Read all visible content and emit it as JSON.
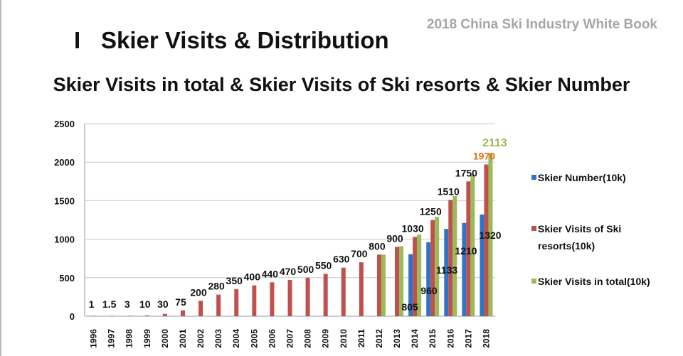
{
  "header": {
    "book_title": "2018 China Ski Industry White Book",
    "section_number": "I",
    "section_title": "Skier Visits & Distribution"
  },
  "chart_data": {
    "type": "bar",
    "title": "Skier Visits in total & Skier Visits of Ski resorts & Skier Number",
    "categories": [
      "1996",
      "1997",
      "1998",
      "1999",
      "2000",
      "2001",
      "2002",
      "2003",
      "2004",
      "2005",
      "2006",
      "2007",
      "2008",
      "2009",
      "2010",
      "2011",
      "2012",
      "2013",
      "2014",
      "2015",
      "2016",
      "2017",
      "2018"
    ],
    "ylim": [
      0,
      2500
    ],
    "yticks": [
      0,
      500,
      1000,
      1500,
      2000,
      2500
    ],
    "grid": true,
    "legend_position": "right",
    "series": [
      {
        "name": "Skier Number(10k)",
        "color": "#2e75c7",
        "values": [
          null,
          null,
          null,
          null,
          null,
          null,
          null,
          null,
          null,
          null,
          null,
          null,
          null,
          null,
          null,
          null,
          null,
          null,
          805,
          960,
          1133,
          1210,
          1320
        ],
        "labels": [
          null,
          null,
          null,
          null,
          null,
          null,
          null,
          null,
          null,
          null,
          null,
          null,
          null,
          null,
          null,
          null,
          null,
          null,
          "805",
          "960",
          "1133",
          "1210",
          "1320"
        ]
      },
      {
        "name": "Skier Visits of Ski resorts(10k)",
        "color": "#c0504d",
        "values": [
          1,
          1.5,
          3,
          10,
          30,
          75,
          200,
          280,
          350,
          400,
          440,
          470,
          500,
          550,
          630,
          700,
          800,
          900,
          1030,
          1250,
          1510,
          1750,
          1970
        ],
        "labels": [
          "1",
          "1.5",
          "3",
          "10",
          "30",
          "75",
          "200",
          "280",
          "350",
          "400",
          "440",
          "470",
          "500",
          "550",
          "630",
          "700",
          "800",
          "900",
          "1030",
          "1250",
          "1510",
          "1750",
          "1970"
        ]
      },
      {
        "name": "Skier Visits in total(10k)",
        "color": "#9bbb59",
        "values": [
          null,
          null,
          null,
          null,
          null,
          null,
          null,
          null,
          null,
          null,
          null,
          null,
          null,
          null,
          null,
          null,
          800,
          910,
          1060,
          1290,
          1560,
          1840,
          2113
        ],
        "labels": [
          null,
          null,
          null,
          null,
          null,
          null,
          null,
          null,
          null,
          null,
          null,
          null,
          null,
          null,
          null,
          null,
          null,
          null,
          null,
          null,
          null,
          null,
          "2113"
        ]
      }
    ],
    "legend": [
      {
        "text": "Skier Number(10k)",
        "color": "#2e75c7"
      },
      {
        "text": "Skier Visits of Ski resorts(10k)",
        "color": "#c0504d"
      },
      {
        "text": "Skier Visits in total(10k)",
        "color": "#9bbb59"
      }
    ],
    "highlight_colors": {
      "1970": "#e46c0a",
      "2113": "#9bbb59"
    }
  }
}
